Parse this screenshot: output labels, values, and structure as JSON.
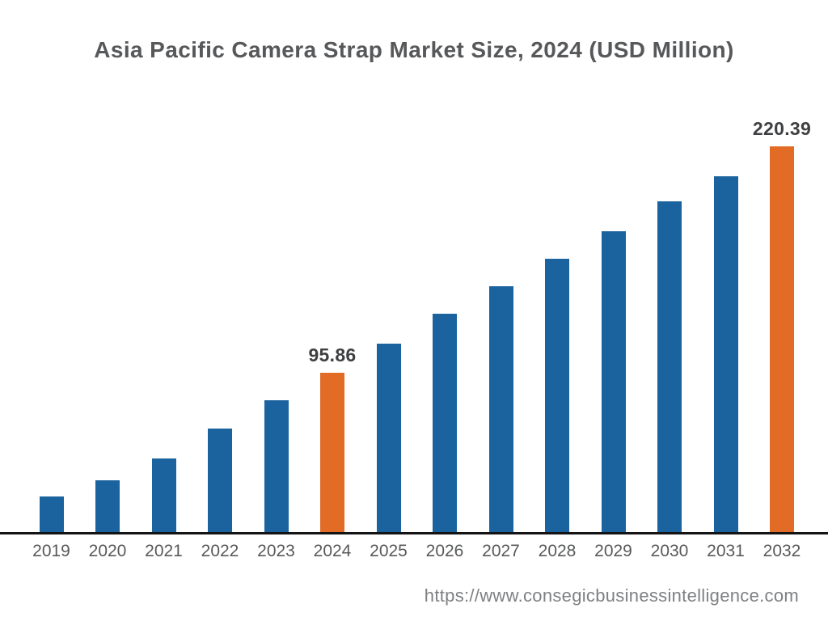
{
  "header": {
    "title": "Asia Pacific Camera Strap Market Size, 2024 (USD Million)"
  },
  "footer": {
    "url": "https://www.consegicbusinessintelligence.com"
  },
  "chart_data": {
    "type": "bar",
    "title": "Asia Pacific Camera Strap Market Size, 2024 (USD Million)",
    "xlabel": "",
    "ylabel": "",
    "unit": "USD Million",
    "grid": false,
    "legend": false,
    "categories": [
      "2019",
      "2020",
      "2021",
      "2022",
      "2023",
      "2024",
      "2025",
      "2026",
      "2027",
      "2028",
      "2029",
      "2030",
      "2031",
      "2032"
    ],
    "values": [
      27.8,
      36.7,
      48.7,
      65.2,
      80.7,
      95.86,
      111.9,
      128.3,
      143.4,
      158.6,
      173.7,
      190.1,
      203.9,
      220.39
    ],
    "value_labels": {
      "2024": "95.86",
      "2032": "220.39"
    },
    "highlighted_categories": [
      "2024",
      "2032"
    ],
    "colors": {
      "bar": "#1b639e",
      "highlight": "#e26b26",
      "axis": "#141414",
      "title_text": "#57585a",
      "value_label_text": "#3e3f41",
      "tick_text": "#58595b",
      "url_text": "#7e8083"
    }
  }
}
